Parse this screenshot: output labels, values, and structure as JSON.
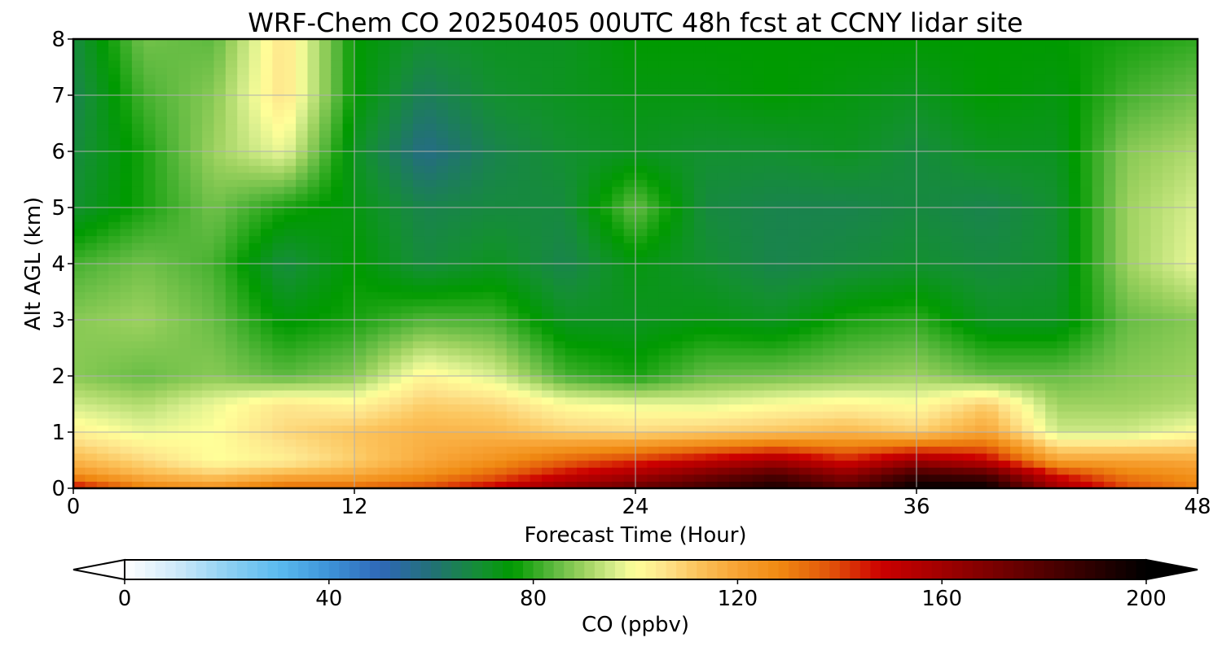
{
  "chart_data": {
    "type": "heatmap",
    "title": "WRF-Chem CO  20250405 00UTC 48h fcst at CCNY lidar site",
    "xlabel": "Forecast Time (Hour)",
    "ylabel": "Alt AGL (km)",
    "xlim": [
      0,
      48
    ],
    "ylim": [
      0,
      8
    ],
    "x_ticks": [
      0,
      12,
      24,
      36,
      48
    ],
    "y_ticks": [
      0,
      1,
      2,
      3,
      4,
      5,
      6,
      7,
      8
    ],
    "grid": true,
    "colorbar": {
      "label": "CO  (ppbv)",
      "min": 0,
      "max": 200,
      "ticks": [
        0,
        40,
        80,
        120,
        160,
        200
      ],
      "extend": "both",
      "orientation": "horizontal",
      "colormap": [
        [
          0,
          "#ffffff"
        ],
        [
          10,
          "#cfeaf9"
        ],
        [
          20,
          "#8fd0f2"
        ],
        [
          30,
          "#5bbbef"
        ],
        [
          40,
          "#3d93d8"
        ],
        [
          50,
          "#2f68b8"
        ],
        [
          60,
          "#237078"
        ],
        [
          70,
          "#139030"
        ],
        [
          76,
          "#009a00"
        ],
        [
          84,
          "#5db93f"
        ],
        [
          90,
          "#9ed260"
        ],
        [
          96,
          "#d9ef8e"
        ],
        [
          100,
          "#ffff99"
        ],
        [
          106,
          "#fde28a"
        ],
        [
          112,
          "#fcc45c"
        ],
        [
          120,
          "#f7a233"
        ],
        [
          128,
          "#f08a12"
        ],
        [
          138,
          "#e2550a"
        ],
        [
          148,
          "#cc0000"
        ],
        [
          160,
          "#a10000"
        ],
        [
          175,
          "#660000"
        ],
        [
          190,
          "#2a0000"
        ],
        [
          200,
          "#000000"
        ]
      ]
    },
    "x": [
      0,
      3,
      6,
      9,
      12,
      15,
      18,
      21,
      24,
      27,
      30,
      33,
      36,
      39,
      42,
      45,
      48
    ],
    "y": [
      0,
      0.25,
      0.5,
      1,
      1.5,
      2,
      3,
      4,
      5,
      6,
      7,
      8
    ],
    "values": [
      [
        150,
        130,
        125,
        135,
        135,
        140,
        150,
        165,
        175,
        185,
        195,
        180,
        200,
        200,
        160,
        140,
        130
      ],
      [
        125,
        115,
        110,
        115,
        118,
        125,
        135,
        148,
        158,
        170,
        180,
        165,
        185,
        180,
        145,
        130,
        125
      ],
      [
        115,
        108,
        100,
        103,
        110,
        118,
        125,
        135,
        142,
        150,
        158,
        145,
        160,
        150,
        120,
        120,
        118
      ],
      [
        103,
        98,
        100,
        108,
        112,
        116,
        115,
        110,
        108,
        110,
        112,
        115,
        110,
        120,
        95,
        95,
        100
      ],
      [
        95,
        92,
        98,
        105,
        102,
        110,
        108,
        100,
        98,
        97,
        100,
        102,
        100,
        110,
        90,
        90,
        92
      ],
      [
        88,
        85,
        88,
        84,
        88,
        102,
        96,
        82,
        78,
        85,
        86,
        88,
        90,
        85,
        85,
        88,
        90
      ],
      [
        88,
        90,
        85,
        75,
        78,
        83,
        82,
        72,
        72,
        74,
        72,
        78,
        80,
        72,
        72,
        85,
        88
      ],
      [
        82,
        86,
        82,
        68,
        76,
        68,
        72,
        66,
        74,
        70,
        66,
        68,
        70,
        68,
        70,
        90,
        98
      ],
      [
        70,
        78,
        86,
        78,
        74,
        66,
        68,
        68,
        85,
        68,
        66,
        66,
        68,
        66,
        70,
        90,
        96
      ],
      [
        68,
        78,
        90,
        98,
        72,
        58,
        66,
        70,
        72,
        70,
        70,
        72,
        68,
        72,
        72,
        88,
        92
      ],
      [
        66,
        82,
        88,
        106,
        76,
        64,
        70,
        72,
        74,
        74,
        76,
        74,
        72,
        76,
        74,
        82,
        86
      ],
      [
        68,
        86,
        84,
        106,
        76,
        70,
        72,
        72,
        76,
        76,
        76,
        76,
        76,
        76,
        76,
        78,
        80
      ]
    ]
  }
}
